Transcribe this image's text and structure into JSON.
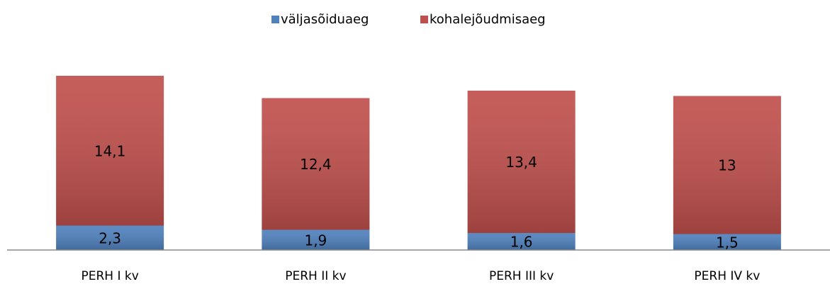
{
  "chart_data": {
    "type": "stacked_bar",
    "categories": [
      "PERH I kv",
      "PERH II kv",
      "PERH III kv",
      "PERH IV kv"
    ],
    "series": [
      {
        "name": "väljasõiduaeg",
        "color": "#4f81bd",
        "values": [
          2.3,
          1.9,
          1.6,
          1.5
        ],
        "value_labels": [
          "2,3",
          "1,9",
          "1,6",
          "1,5"
        ]
      },
      {
        "name": "kohalejõudmisaeg",
        "color": "#c0504d",
        "values": [
          14.1,
          12.4,
          13.4,
          13
        ],
        "value_labels": [
          "14,1",
          "12,4",
          "13,4",
          "13"
        ]
      }
    ],
    "legend": "top"
  }
}
